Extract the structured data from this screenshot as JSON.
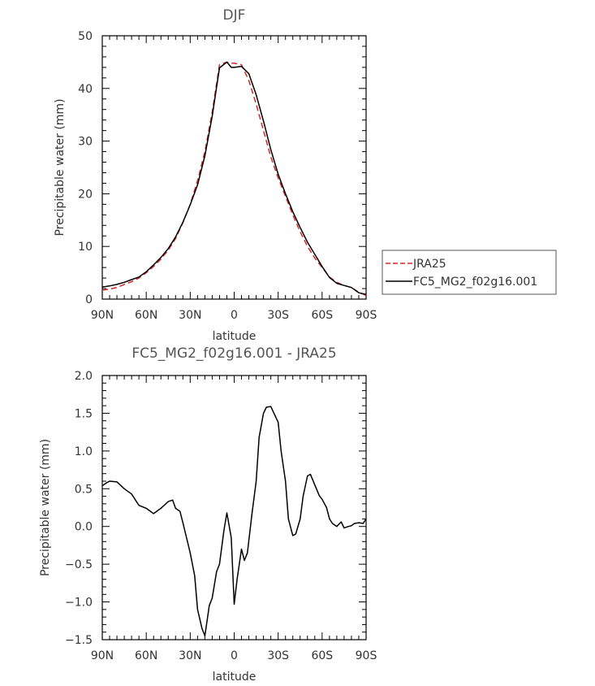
{
  "chart_data": [
    {
      "type": "line",
      "title": "DJF",
      "xlabel": "latitude",
      "ylabel": "Precipitable water (mm)",
      "xlim": [
        90,
        -90
      ],
      "ylim": [
        0,
        50
      ],
      "xticks": [
        90,
        60,
        30,
        0,
        -30,
        -60,
        -90
      ],
      "xtick_labels": [
        "90N",
        "60N",
        "30N",
        "0",
        "30S",
        "60S",
        "90S"
      ],
      "yticks": [
        0,
        10,
        20,
        30,
        40,
        50
      ],
      "ytick_labels": [
        "0",
        "10",
        "20",
        "30",
        "40",
        "50"
      ],
      "legend": "right",
      "series": [
        {
          "name": "JRA25",
          "color": "#d62728",
          "dash": "dashed",
          "x": [
            90,
            85,
            80,
            75,
            70,
            65,
            60,
            55,
            50,
            45,
            40,
            35,
            30,
            25,
            20,
            15,
            10,
            5,
            2,
            0,
            -5,
            -10,
            -15,
            -20,
            -25,
            -30,
            -35,
            -40,
            -45,
            -50,
            -55,
            -60,
            -65,
            -70,
            -75,
            -80,
            -85,
            -90
          ],
          "y": [
            1.7,
            1.9,
            2.2,
            2.8,
            3.3,
            4.0,
            5.0,
            6.2,
            7.6,
            9.3,
            11.5,
            14.5,
            18.0,
            22.5,
            28.0,
            35.5,
            44.5,
            45.0,
            44.8,
            44.8,
            44.5,
            41.5,
            37.0,
            32.0,
            27.0,
            23.0,
            19.5,
            16.0,
            12.8,
            10.0,
            7.8,
            6.0,
            4.2,
            3.2,
            2.6,
            2.2,
            1.3,
            0.7
          ]
        },
        {
          "name": "FC5_MG2_f02g16.001",
          "color": "#000000",
          "dash": "solid",
          "x": [
            90,
            85,
            80,
            75,
            70,
            65,
            60,
            55,
            50,
            45,
            40,
            35,
            30,
            25,
            20,
            15,
            10,
            5,
            2,
            0,
            -5,
            -10,
            -15,
            -20,
            -25,
            -30,
            -35,
            -40,
            -45,
            -50,
            -55,
            -60,
            -65,
            -70,
            -75,
            -80,
            -85,
            -90
          ],
          "y": [
            2.3,
            2.5,
            2.8,
            3.2,
            3.7,
            4.2,
            5.2,
            6.5,
            7.9,
            9.6,
            11.8,
            14.6,
            17.9,
            21.7,
            27.2,
            34.7,
            43.9,
            45.0,
            44.0,
            44.0,
            44.2,
            42.8,
            38.8,
            33.8,
            28.4,
            23.7,
            20.0,
            16.6,
            13.6,
            10.8,
            8.5,
            6.2,
            4.1,
            3.0,
            2.6,
            2.2,
            1.2,
            0.9
          ]
        }
      ]
    },
    {
      "type": "line",
      "title": "FC5_MG2_f02g16.001 - JRA25",
      "xlabel": "latitude",
      "ylabel": "Precipitable water (mm)",
      "xlim": [
        90,
        -90
      ],
      "ylim": [
        -1.5,
        2.0
      ],
      "xticks": [
        90,
        60,
        30,
        0,
        -30,
        -60,
        -90
      ],
      "xtick_labels": [
        "90N",
        "60N",
        "30N",
        "0",
        "30S",
        "60S",
        "90S"
      ],
      "yticks": [
        -1.5,
        -1.0,
        -0.5,
        0.0,
        0.5,
        1.0,
        1.5,
        2.0
      ],
      "ytick_labels": [
        "−1.5",
        "−1.0",
        "−0.5",
        "0.0",
        "0.5",
        "1.0",
        "1.5",
        "2.0"
      ],
      "series": [
        {
          "color": "#000000",
          "dash": "solid",
          "x": [
            90,
            87,
            85,
            80,
            75,
            70,
            65,
            60,
            55,
            50,
            45,
            42,
            40,
            37,
            35,
            30,
            27,
            25,
            22,
            20,
            17,
            15,
            12,
            10,
            7,
            5,
            2,
            0,
            -2,
            -5,
            -7,
            -9,
            -12,
            -15,
            -17,
            -20,
            -22,
            -25,
            -30,
            -32,
            -35,
            -37,
            -40,
            -42,
            -45,
            -47,
            -50,
            -52,
            -55,
            -58,
            -60,
            -63,
            -65,
            -67,
            -70,
            -73,
            -75,
            -78,
            -80,
            -82,
            -85,
            -88,
            -90
          ],
          "y": [
            0.54,
            0.58,
            0.6,
            0.59,
            0.5,
            0.43,
            0.28,
            0.24,
            0.17,
            0.24,
            0.33,
            0.35,
            0.24,
            0.2,
            0.05,
            -0.35,
            -0.65,
            -1.1,
            -1.35,
            -1.45,
            -1.05,
            -0.95,
            -0.6,
            -0.5,
            -0.05,
            0.18,
            -0.15,
            -1.03,
            -0.7,
            -0.3,
            -0.45,
            -0.35,
            0.15,
            0.6,
            1.18,
            1.5,
            1.58,
            1.59,
            1.38,
            1.0,
            0.6,
            0.1,
            -0.12,
            -0.1,
            0.1,
            0.4,
            0.67,
            0.69,
            0.55,
            0.41,
            0.36,
            0.25,
            0.1,
            0.04,
            0.0,
            0.06,
            -0.02,
            0.0,
            0.01,
            0.04,
            0.05,
            0.04,
            0.1
          ]
        }
      ]
    }
  ]
}
